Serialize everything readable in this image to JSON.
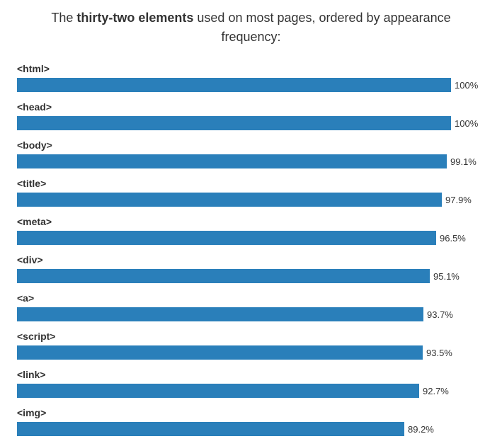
{
  "title": {
    "prefix": "The ",
    "emphasis": "thirty-two elements",
    "suffix": " used on most pages, ordered by appearance frequency:"
  },
  "chart_data": {
    "type": "bar",
    "orientation": "horizontal",
    "title": "The thirty-two elements used on most pages, ordered by appearance frequency:",
    "categories": [
      "<html>",
      "<head>",
      "<body>",
      "<title>",
      "<meta>",
      "<div>",
      "<a>",
      "<script>",
      "<link>",
      "<img>"
    ],
    "values": [
      100,
      100,
      99.1,
      97.9,
      96.5,
      95.1,
      93.7,
      93.5,
      92.7,
      89.2
    ],
    "value_labels": [
      "100%",
      "100%",
      "99.1%",
      "97.9%",
      "96.5%",
      "95.1%",
      "93.7%",
      "93.5%",
      "92.7%",
      "89.2%"
    ],
    "unit": "%",
    "xlim": [
      0,
      100
    ],
    "bar_color": "#2a7fba",
    "grid": false,
    "legend": "none"
  }
}
